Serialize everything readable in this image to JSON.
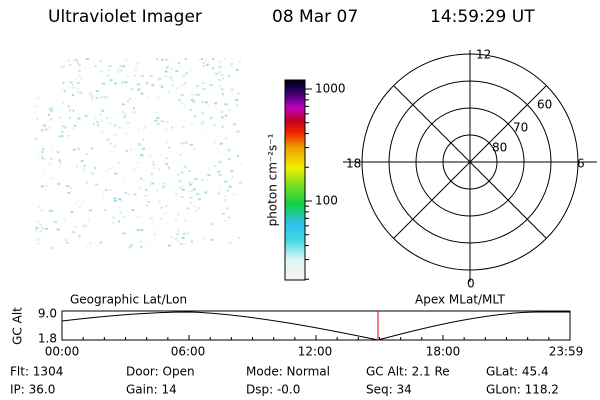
{
  "header": {
    "title": "Ultraviolet Imager",
    "date": "08 Mar 07",
    "time": "14:59:29 UT"
  },
  "colorbar": {
    "label": "photon cm⁻²s⁻¹",
    "ticks": [
      1000,
      100
    ]
  },
  "polar": {
    "mlt_labels": [
      "12",
      "18",
      "6",
      "0"
    ],
    "lat_labels": [
      "60",
      "70",
      "80"
    ]
  },
  "strip": {
    "left_title": "Geographic Lat/Lon",
    "right_title": "Apex MLat/MLT",
    "axis_label": "GC Alt",
    "y_labels": [
      "9.0",
      "1.8"
    ],
    "time_labels": [
      "00:00",
      "06:00",
      "12:00",
      "18:00",
      "23:59"
    ]
  },
  "footer": {
    "rows": [
      [
        "Flt: 1304",
        "Door: Open",
        "Mode: Normal",
        "GC Alt: 2.1 Re",
        "GLat: 45.4"
      ],
      [
        "IP: 36.0",
        "Gain: 14",
        "Dsp: -0.0",
        "Seq: 34",
        "GLon: 118.2"
      ]
    ]
  }
}
